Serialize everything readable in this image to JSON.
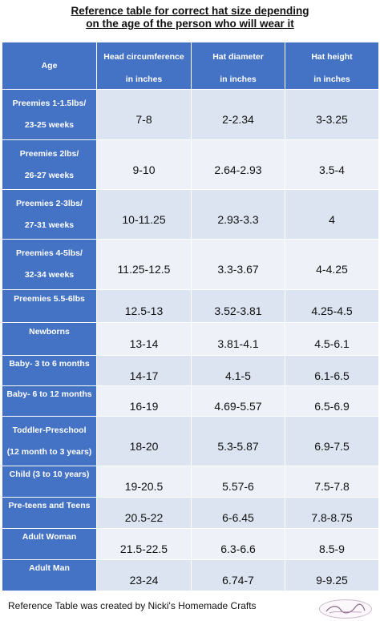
{
  "title": {
    "line1": "Reference table for correct hat size depending",
    "line2": "on the age of the person who will wear it"
  },
  "headers": {
    "age": "Age",
    "head": {
      "line1": "Head circumference",
      "line2": "in inches"
    },
    "diameter": {
      "line1": "Hat diameter",
      "line2": "in inches"
    },
    "height": {
      "line1": "Hat height",
      "line2": "in inches"
    }
  },
  "rows": [
    {
      "age1": "Preemies 1-1.5lbs/",
      "age2": "23-25 weeks",
      "head": "7-8",
      "diameter": "2-2.34",
      "height": "3-3.25"
    },
    {
      "age1": "Preemies 2lbs/",
      "age2": "26-27 weeks",
      "head": "9-10",
      "diameter": "2.64-2.93",
      "height": "3.5-4"
    },
    {
      "age1": "Preemies 2-3lbs/",
      "age2": "27-31 weeks",
      "head": "10-11.25",
      "diameter": "2.93-3.3",
      "height": "4"
    },
    {
      "age1": "Preemies 4-5lbs/",
      "age2": "32-34 weeks",
      "head": "11.25-12.5",
      "diameter": "3.3-3.67",
      "height": "4-4.25"
    },
    {
      "age1": "Preemies 5.5-6lbs",
      "age2": "",
      "head": "12.5-13",
      "diameter": "3.52-3.81",
      "height": "4.25-4.5"
    },
    {
      "age1": "Newborns",
      "age2": "",
      "head": "13-14",
      "diameter": "3.81-4.1",
      "height": "4.5-6.1"
    },
    {
      "age1": "Baby- 3 to 6 months",
      "age2": "",
      "head": "14-17",
      "diameter": "4.1-5",
      "height": "6.1-6.5"
    },
    {
      "age1": "Baby- 6 to 12 months",
      "age2": "",
      "head": "16-19",
      "diameter": "4.69-5.57",
      "height": "6.5-6.9"
    },
    {
      "age1": "Toddler-Preschool",
      "age2": "(12 month to 3 years)",
      "head": "18-20",
      "diameter": "5.3-5.87",
      "height": "6.9-7.5"
    },
    {
      "age1": "Child (3 to 10 years)",
      "age2": "",
      "head": "19-20.5",
      "diameter": "5.57-6",
      "height": "7.5-7.8"
    },
    {
      "age1": "Pre-teens and Teens",
      "age2": "",
      "head": "20.5-22",
      "diameter": "6-6.45",
      "height": "7.8-8.75"
    },
    {
      "age1": "Adult Woman",
      "age2": "",
      "head": "21.5-22.5",
      "diameter": "6.3-6.6",
      "height": "8.5-9"
    },
    {
      "age1": "Adult Man",
      "age2": "",
      "head": "23-24",
      "diameter": "6.74-7",
      "height": "9-9.25"
    }
  ],
  "footer": "Reference Table was created by Nicki's Homemade Crafts",
  "logo_icon": "nickis-homemade-crafts-logo",
  "colors": {
    "header_blue": "#4472c4",
    "cell_light": "#dce4f1"
  }
}
